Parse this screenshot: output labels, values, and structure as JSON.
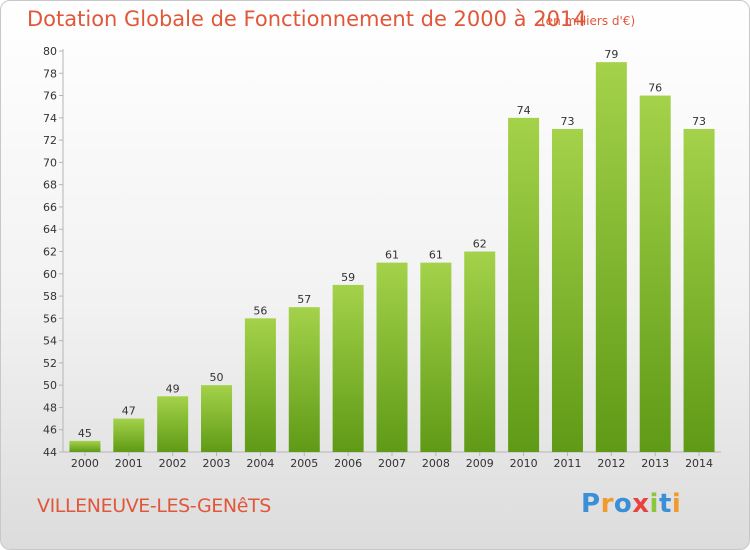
{
  "header": {
    "title": "Dotation Globale de Fonctionnement de 2000 à 2014",
    "subtitle": "(en milliers d'€)"
  },
  "footer": {
    "commune": "VILLENEUVE-LES-GENêTS",
    "logo_letters": [
      "P",
      "r",
      "o",
      "x",
      "i",
      "t",
      "i"
    ],
    "logo_colors": [
      "#3b8fd6",
      "#f29a2e",
      "#3b8fd6",
      "#e8433c",
      "#8cc63f",
      "#3b8fd6",
      "#f29a2e"
    ]
  },
  "chart_data": {
    "type": "bar",
    "title": "Dotation Globale de Fonctionnement de 2000 à 2014",
    "subtitle": "(en milliers d'€)",
    "categories": [
      "2000",
      "2001",
      "2002",
      "2003",
      "2004",
      "2005",
      "2006",
      "2007",
      "2008",
      "2009",
      "2010",
      "2011",
      "2012",
      "2013",
      "2014"
    ],
    "values": [
      45,
      47,
      49,
      50,
      56,
      57,
      59,
      61,
      61,
      62,
      74,
      73,
      79,
      76,
      73
    ],
    "ylim": [
      44,
      80
    ],
    "yticks": [
      44,
      46,
      48,
      50,
      52,
      54,
      56,
      58,
      60,
      62,
      64,
      66,
      68,
      70,
      72,
      74,
      76,
      78,
      80
    ],
    "grid": false,
    "data_labels": true,
    "bar_color": "#84bb2c"
  }
}
